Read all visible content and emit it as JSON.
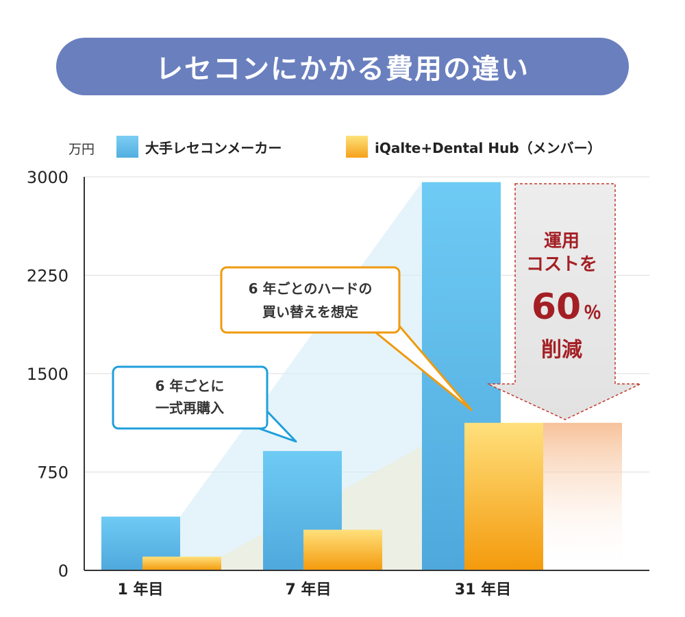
{
  "title": "レセコンにかかる費用の違い",
  "unit": "万円",
  "legend": [
    {
      "label": "大手レセコンメーカー",
      "color": "#5bb8ea"
    },
    {
      "label": "iQalte+Dental Hub（メンバー）",
      "color": "#f7a823"
    }
  ],
  "callouts": {
    "blue": {
      "line1": "6 年ごとに",
      "line2": "一式再購入"
    },
    "orange": {
      "line1": "6 年ごとのハードの",
      "line2": "買い替えを想定"
    },
    "reduction": {
      "line1": "運用",
      "line2": "コストを",
      "percent_value": "60",
      "percent_sign": "％",
      "line4": "削減"
    }
  },
  "chart_data": {
    "type": "bar",
    "categories": [
      "1 年目",
      "7 年目",
      "31 年目"
    ],
    "series": [
      {
        "name": "大手レセコンメーカー",
        "values": [
          410,
          910,
          2960
        ]
      },
      {
        "name": "iQalte+Dental Hub（メンバー）",
        "values": [
          105,
          310,
          1125
        ]
      }
    ],
    "ylim": [
      0,
      3000
    ],
    "yticks": [
      0,
      750,
      1500,
      2250,
      3000
    ],
    "grid": true,
    "legend_position": "top"
  },
  "colors": {
    "title_bg": "#6a7fbe",
    "blue": "#5bb8ea",
    "orange": "#f7a823",
    "reduction_red": "#a31f24",
    "callout_blue_border": "#1f9fdc",
    "callout_orange_border": "#ef9a0f"
  }
}
